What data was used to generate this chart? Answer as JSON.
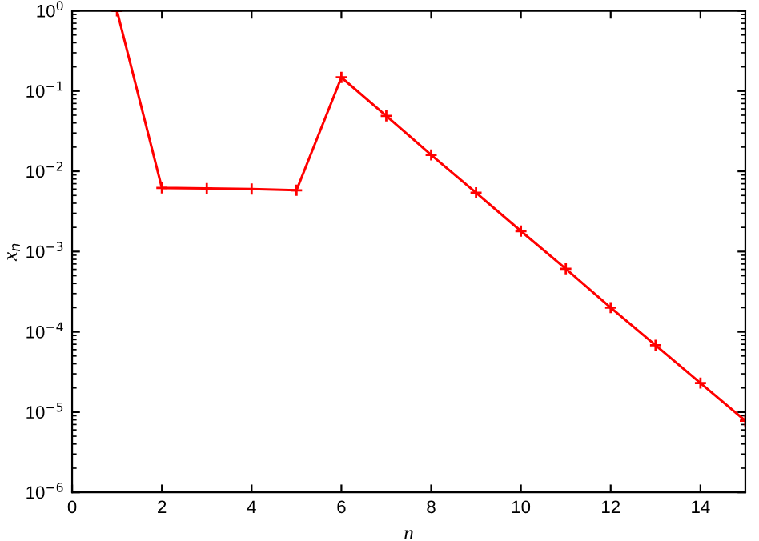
{
  "chart_data": {
    "type": "line",
    "xlabel": "n",
    "ylabel": "x$_{n}$",
    "log": "y",
    "grid": false,
    "legend": false,
    "marker": "cross",
    "line_style": "solid",
    "x": [
      1,
      2,
      3,
      4,
      5,
      6,
      7,
      8,
      9,
      10,
      11,
      12,
      13,
      14,
      15
    ],
    "series": [
      {
        "color": "#ff0000",
        "values": [
          1,
          0.0062,
          0.0061,
          0.006,
          0.0058,
          0.148,
          0.049,
          0.016,
          0.0054,
          0.0018,
          0.00061,
          0.0002,
          6.8e-05,
          2.3e-05,
          7.8e-06
        ]
      }
    ],
    "xlim": [
      0,
      15
    ],
    "xticks": [
      0,
      2,
      4,
      6,
      8,
      10,
      12,
      14
    ],
    "ylim": [
      1e-06,
      1
    ],
    "yticks": [
      {
        "value": 1e-06,
        "label": "10$^{−6}$"
      },
      {
        "value": 1e-05,
        "label": "10$^{−5}$"
      },
      {
        "value": 0.0001,
        "label": "10$^{−4}$"
      },
      {
        "value": 0.001,
        "label": "10$^{−3}$"
      },
      {
        "value": 0.01,
        "label": "10$^{−2}$"
      },
      {
        "value": 0.1,
        "label": "10$^{−1}$"
      },
      {
        "value": 1,
        "label": "10$^{0}$"
      }
    ]
  }
}
